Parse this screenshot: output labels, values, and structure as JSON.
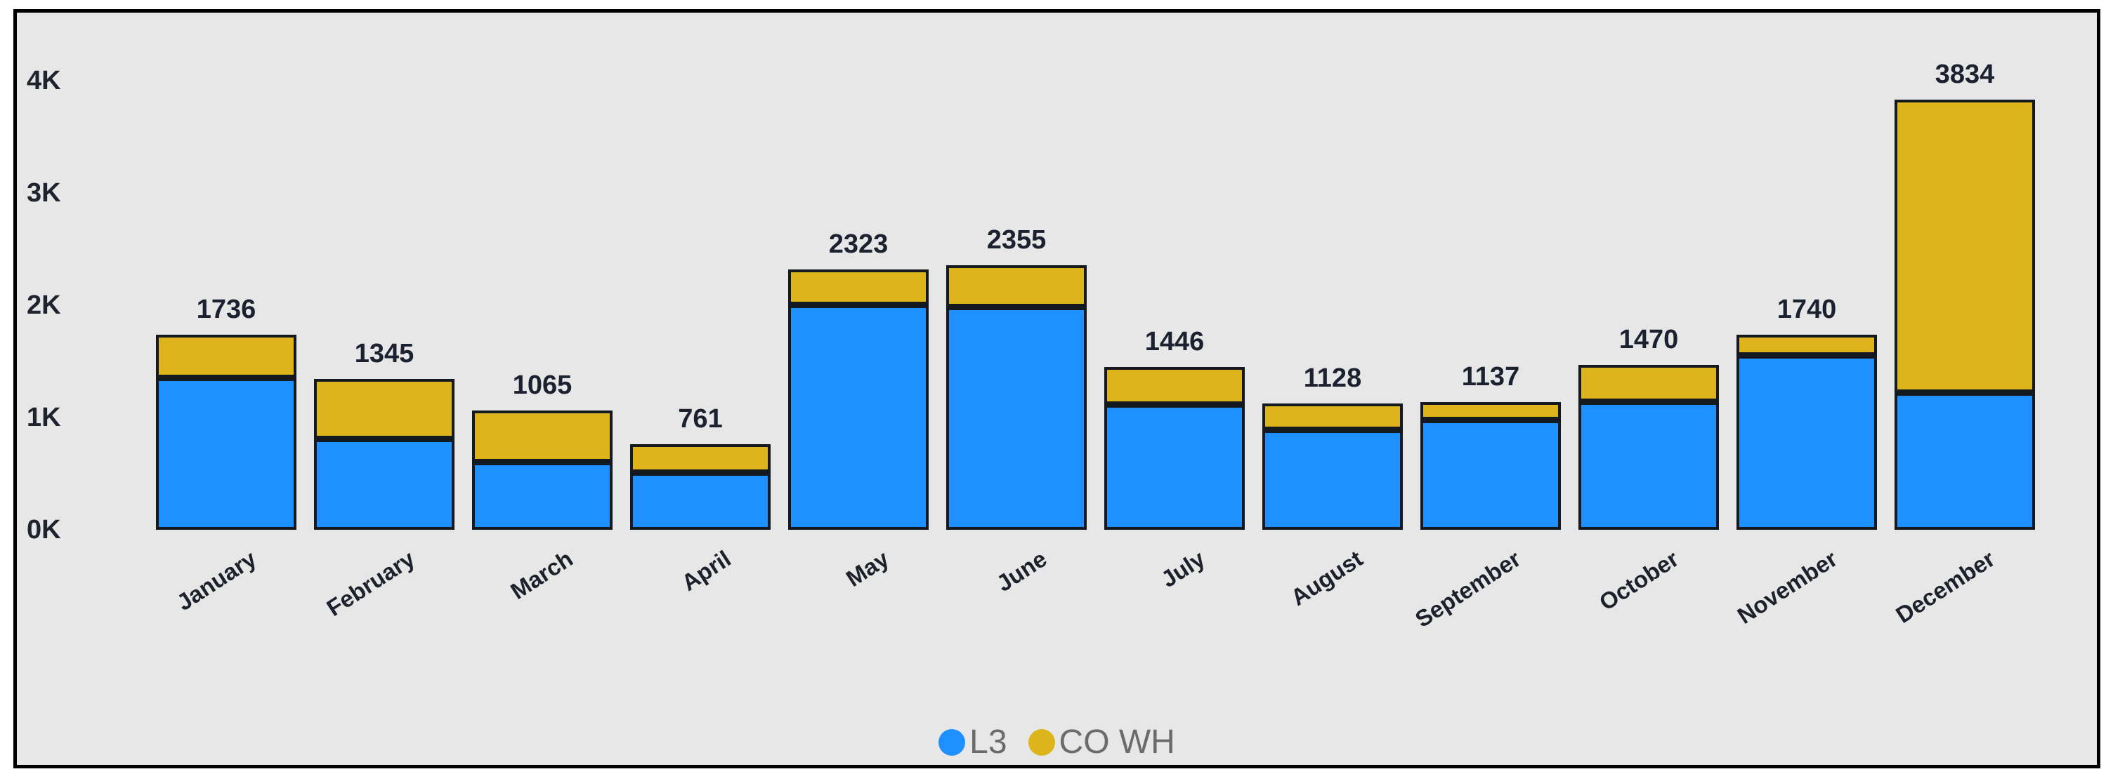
{
  "chart_data": {
    "type": "bar",
    "stacked": true,
    "title": "",
    "xlabel": "",
    "ylabel": "",
    "categories": [
      "January",
      "February",
      "March",
      "April",
      "May",
      "June",
      "July",
      "August",
      "September",
      "October",
      "November",
      "December"
    ],
    "series": [
      {
        "name": "L3",
        "color": "#1E90FF",
        "values": [
          1348,
          809,
          601,
          504,
          2002,
          1980,
          1110,
          888,
          975,
          1140,
          1552,
          1220
        ]
      },
      {
        "name": "CO WH",
        "color": "#DDB41C",
        "values": [
          388,
          536,
          464,
          257,
          321,
          375,
          336,
          240,
          162,
          330,
          188,
          2614
        ]
      }
    ],
    "totals": [
      1736,
      1345,
      1065,
      761,
      2323,
      2355,
      1446,
      1128,
      1137,
      1470,
      1740,
      3834
    ],
    "y_ticks": [
      "4K",
      "3K",
      "2K",
      "1K",
      "0K"
    ],
    "y_tick_values": [
      4000,
      3000,
      2000,
      1000,
      0
    ],
    "ylim": [
      0,
      4000
    ],
    "grid": false,
    "legend": {
      "position": "bottom-center",
      "entries": [
        "L3",
        "CO WH"
      ]
    }
  },
  "colors": {
    "chart_background": "#E7E7E7",
    "frame_border": "#000000",
    "bar_border": "#14181F",
    "axis_label": "#1F232E",
    "data_label": "#1C2130",
    "legend_text": "#6B6B6B"
  }
}
